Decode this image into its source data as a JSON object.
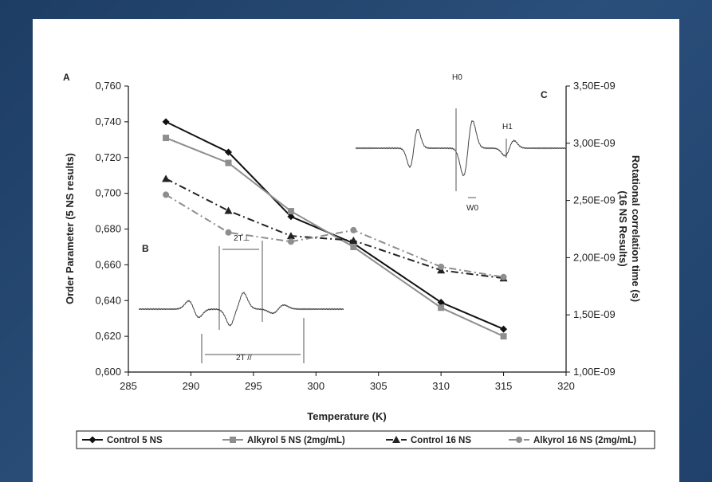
{
  "chart_data": {
    "type": "line",
    "xlabel": "Temperature (K)",
    "ylabel": "Order Parameter (5 NS results)",
    "y2label_lines": [
      "Rotational correlation time (s)",
      "(16 NS Results)"
    ],
    "xlim": [
      285,
      320
    ],
    "ylim": [
      0.6,
      0.76
    ],
    "y2lim": [
      1e-09,
      3.5e-09
    ],
    "x_ticks": [
      "285",
      "290",
      "295",
      "300",
      "305",
      "310",
      "315",
      "320"
    ],
    "y_ticks": [
      "0,600",
      "0,620",
      "0,640",
      "0,660",
      "0,680",
      "0,700",
      "0,720",
      "0,740",
      "0,760"
    ],
    "y2_ticks": [
      "1,00E-09",
      "1,50E-09",
      "2,00E-09",
      "2,50E-09",
      "3,00E-09",
      "3,50E-09"
    ],
    "grid": false,
    "legend_position": "bottom",
    "series": [
      {
        "name": "Control 5 NS",
        "axis": "left",
        "color": "#111111",
        "marker": "diamond",
        "dash": "solid",
        "x": [
          288,
          293,
          298,
          303,
          310,
          315
        ],
        "values": [
          0.74,
          0.723,
          0.687,
          0.672,
          0.639,
          0.624
        ]
      },
      {
        "name": "Alkyrol 5 NS (2mg/mL)",
        "axis": "left",
        "color": "#8e8e8e",
        "marker": "square",
        "dash": "solid",
        "x": [
          288,
          293,
          298,
          303,
          310,
          315
        ],
        "values": [
          0.731,
          0.717,
          0.69,
          0.67,
          0.636,
          0.62
        ]
      },
      {
        "name": "Control 16 NS",
        "axis": "right",
        "color": "#222222",
        "marker": "triangle",
        "dash": "dashdot",
        "x": [
          288,
          293,
          298,
          303,
          310,
          315
        ],
        "values": [
          2.69e-09,
          2.41e-09,
          2.19e-09,
          2.15e-09,
          1.89e-09,
          1.82e-09
        ]
      },
      {
        "name": "Alkyrol 16 NS (2mg/mL)",
        "axis": "right",
        "color": "#8e8e8e",
        "marker": "circle",
        "dash": "dashdot",
        "x": [
          288,
          293,
          298,
          303,
          310,
          315
        ],
        "values": [
          2.55e-09,
          2.22e-09,
          2.14e-09,
          2.24e-09,
          1.92e-09,
          1.83e-09
        ]
      }
    ],
    "annotations": {
      "panel_a": "A",
      "panel_b": "B",
      "panel_c": "C",
      "two_t_perp": "2T⊥",
      "two_t_par": "2T //",
      "h0": "H0",
      "h1": "H1",
      "w0": "W0"
    }
  }
}
